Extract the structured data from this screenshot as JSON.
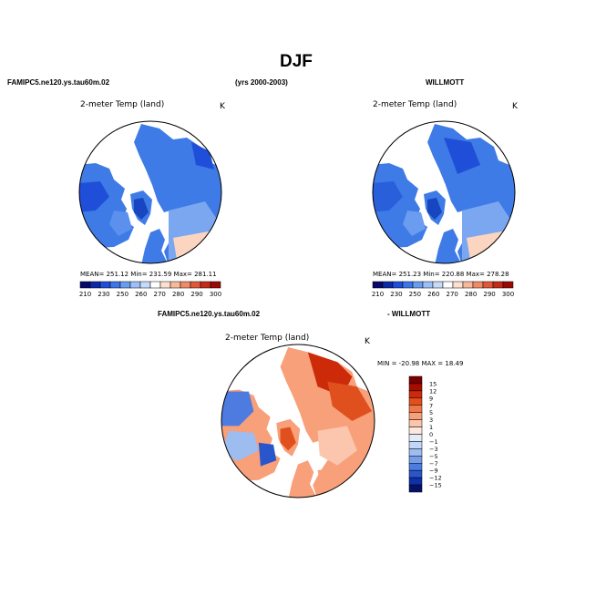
{
  "figure": {
    "title": "DJF",
    "left_header": "FAMIPC5.ne120.ys.tau60m.02",
    "center_header": "(yrs 2000-2003)",
    "right_header": "WILLMOTT",
    "diff_header_left": "FAMIPC5.ne120.ys.tau60m.02",
    "diff_header_right": "- WILLMOTT"
  },
  "panels": [
    {
      "id": "model",
      "subtitle": "2-meter Temp (land)",
      "units": "K",
      "stats": "MEAN= 251.12   Min= 231.59   Max= 281.11",
      "colorbar_labels": [
        "210",
        "230",
        "250",
        "260",
        "270",
        "280",
        "290",
        "300"
      ]
    },
    {
      "id": "obs",
      "subtitle": "2-meter Temp (land)",
      "units": "K",
      "stats": "MEAN= 251.23   Min= 220.88   Max= 278.28",
      "colorbar_labels": [
        "210",
        "230",
        "250",
        "260",
        "270",
        "280",
        "290",
        "300"
      ]
    },
    {
      "id": "diff",
      "subtitle": "2-meter Temp (land)",
      "units": "K",
      "stats": "MIN = -20.98 MAX =  18.49",
      "colorbar_labels": [
        "15",
        "12",
        "9",
        "7",
        "5",
        "3",
        "1",
        "0",
        "−1",
        "−3",
        "−5",
        "−7",
        "−9",
        "−12",
        "−15"
      ]
    }
  ],
  "colors": {
    "abs_scale": [
      "#08086b",
      "#0c2aa8",
      "#1f4fd8",
      "#3d76e8",
      "#6a9cf0",
      "#9bbff6",
      "#c6daf9",
      "#ffffff",
      "#fde0cf",
      "#f8b89a",
      "#f08a66",
      "#e0583a",
      "#c42a18",
      "#9a0a05"
    ],
    "diff_scale": [
      "#7a0000",
      "#a80c00",
      "#cc2a08",
      "#e0501e",
      "#f07848",
      "#f7a07a",
      "#fbc6ad",
      "#fde8dc",
      "#e2ecfb",
      "#c2d6f6",
      "#9dbcf0",
      "#759de8",
      "#4d7be0",
      "#2a56cc",
      "#1030a8",
      "#05126b"
    ]
  }
}
